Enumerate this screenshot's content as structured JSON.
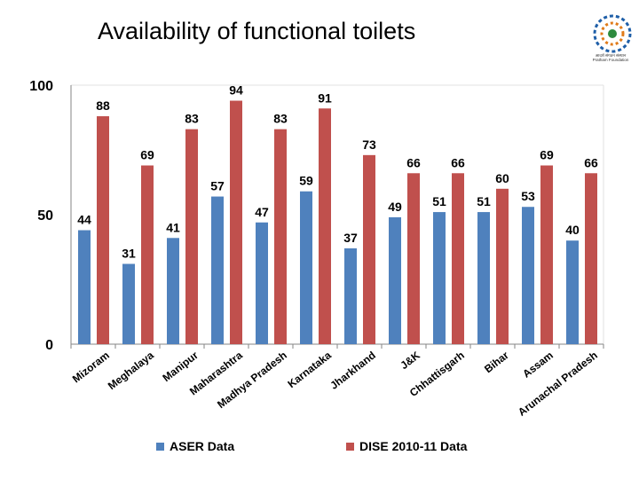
{
  "header": {
    "title": "Availability of functional toilets"
  },
  "logo": {
    "icon": "circular-emblem-icon",
    "caption_line1": "आदर्श संगठन संस्थान",
    "caption_line2": "Pratham Foundation"
  },
  "colors": {
    "aser": "#4F81BD",
    "dise": "#C0504D",
    "grid": "#E0E0E0",
    "axis": "#868686"
  },
  "chart_data": {
    "type": "bar",
    "title": "",
    "xlabel": "",
    "ylabel": "",
    "ylim": [
      0,
      100
    ],
    "yticks": [
      0,
      50,
      100
    ],
    "grid": false,
    "legend_position": "bottom",
    "categories": [
      "Mizoram",
      "Meghalaya",
      "Manipur",
      "Maharashtra",
      "Madhya Pradesh",
      "Karnataka",
      "Jharkhand",
      "J&K",
      "Chhattisgarh",
      "Bihar",
      "Assam",
      "Arunachal Pradesh"
    ],
    "series": [
      {
        "name": "ASER Data",
        "values": [
          44,
          31,
          41,
          57,
          47,
          59,
          37,
          49,
          51,
          51,
          53,
          40
        ]
      },
      {
        "name": "DISE 2010-11 Data",
        "values": [
          88,
          69,
          83,
          94,
          83,
          91,
          73,
          66,
          66,
          60,
          69,
          66
        ]
      }
    ]
  }
}
